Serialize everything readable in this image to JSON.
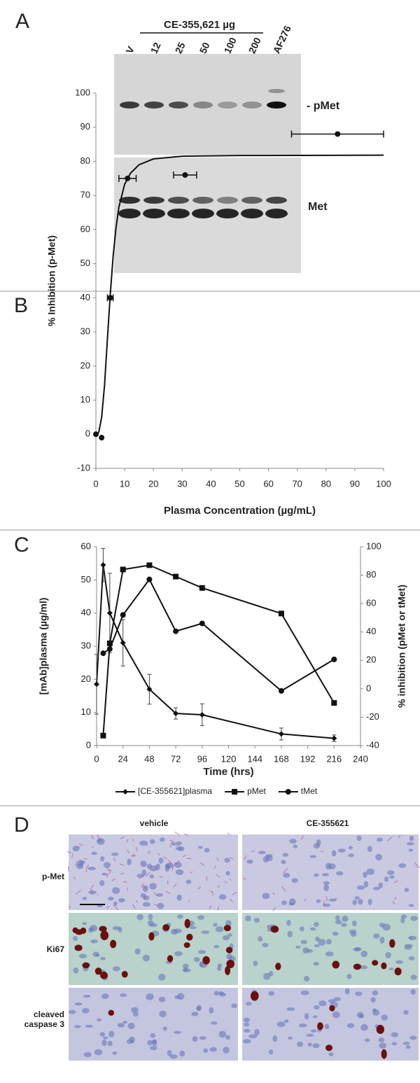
{
  "panel_a": {
    "label": "A",
    "treatment": "CE-355,621 µg",
    "lanes": [
      "V",
      "12",
      "25",
      "50",
      "100",
      "200",
      "AF276"
    ],
    "upper_band": "- pMet",
    "lower_band": "Met"
  },
  "chart_data": [
    {
      "type": "scatter",
      "label": "B",
      "ylabel": "% Inhibition (p-Met)",
      "xlabel": "Plasma Concentration (µg/mL)",
      "xlim": [
        0,
        100
      ],
      "ylim": [
        -10,
        100
      ],
      "xticks": [
        0,
        10,
        20,
        30,
        40,
        50,
        60,
        70,
        80,
        90,
        100
      ],
      "yticks": [
        -10,
        0,
        10,
        20,
        30,
        40,
        50,
        60,
        70,
        80,
        90,
        100
      ],
      "series": [
        {
          "color": "#111111",
          "marker": "circle",
          "line": false,
          "x": [
            0,
            2,
            5,
            11,
            31,
            84
          ],
          "values": [
            0,
            -1,
            40,
            75,
            76,
            88
          ],
          "x_errors": [
            null,
            null,
            1,
            3,
            4,
            16
          ]
        },
        {
          "color": "#111111",
          "marker": "none",
          "line": true,
          "x": [
            0,
            1,
            2,
            3,
            4,
            5,
            6,
            7,
            8,
            10,
            12,
            15,
            20,
            30,
            50,
            100
          ],
          "values": [
            0,
            0.6,
            5,
            14.3,
            27.9,
            41,
            52.3,
            60.6,
            66.6,
            73.3,
            76.5,
            79,
            80.7,
            81.5,
            81.7,
            81.8
          ]
        }
      ]
    },
    {
      "type": "line",
      "label": "C",
      "xlabel": "Time (hrs)",
      "ylabel": "[mAb]plasma (µg/ml)",
      "y2label": "% inhibition (pMet or tMet)",
      "xlim": [
        0,
        240
      ],
      "ylim": [
        0,
        60
      ],
      "y2lim": [
        -40,
        100
      ],
      "xticks": [
        0,
        24,
        48,
        72,
        96,
        120,
        144,
        168,
        192,
        216,
        240
      ],
      "yticks": [
        0,
        10,
        20,
        30,
        40,
        50,
        60
      ],
      "y2ticks": [
        -40,
        -20,
        0,
        20,
        40,
        60,
        80,
        100
      ],
      "legend": "bottom",
      "series": [
        {
          "name": "[CE-355621]plasma",
          "color": "#111111",
          "marker": "diamond",
          "line": true,
          "x": [
            0,
            6,
            12,
            24,
            48,
            72,
            96,
            168,
            216
          ],
          "values": [
            18.5,
            54.5,
            40,
            31,
            17,
            9.7,
            9.3,
            3.5,
            2.2
          ],
          "errors": [
            9,
            5,
            12,
            7,
            4.5,
            1.7,
            3.3,
            1.8,
            1
          ]
        },
        {
          "name": "pMet",
          "color": "#111111",
          "marker": "square",
          "line": true,
          "axis": "y2",
          "x": [
            6,
            12,
            24,
            48,
            72,
            96,
            168,
            216
          ],
          "values": [
            -33,
            32,
            84,
            87,
            79,
            71,
            53,
            -10
          ]
        },
        {
          "name": "tMet",
          "color": "#111111",
          "marker": "circle",
          "line": true,
          "axis": "y2",
          "x": [
            6,
            12,
            24,
            48,
            72,
            96,
            168,
            216
          ],
          "values": [
            25,
            28,
            52,
            77,
            40.5,
            46,
            -1.5,
            20.7
          ]
        }
      ]
    }
  ],
  "panel_d": {
    "label": "D",
    "columns": [
      "vehicle",
      "CE-355621"
    ],
    "rows": [
      "p-Met",
      "Ki67",
      "cleaved caspase 3"
    ]
  }
}
